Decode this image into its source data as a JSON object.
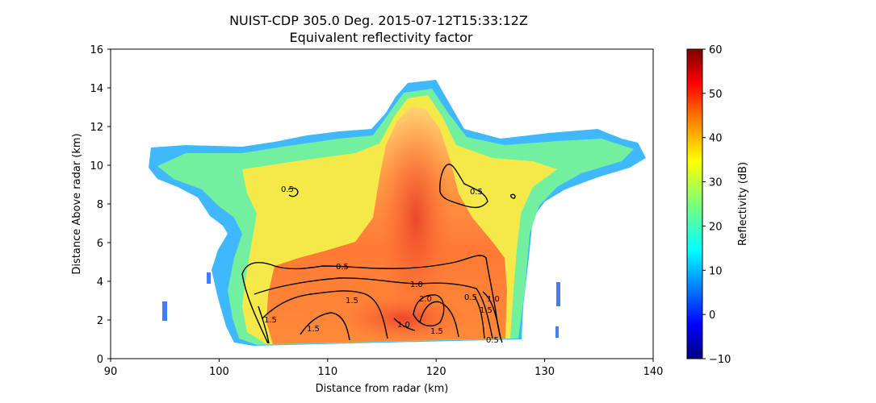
{
  "figure": {
    "title_line1": "NUIST-CDP 305.0 Deg. 2015-07-12T15:33:12Z",
    "title_line2": "Equivalent reflectivity factor"
  },
  "chart_data": {
    "type": "heatmap",
    "xlabel": "Distance from radar (km)",
    "ylabel": "Distance Above radar  (km)",
    "xlim": [
      90,
      140
    ],
    "ylim": [
      0,
      16
    ],
    "x_ticks": [
      "90",
      "100",
      "110",
      "120",
      "130",
      "140"
    ],
    "y_ticks": [
      "0",
      "2",
      "4",
      "6",
      "8",
      "10",
      "12",
      "14",
      "16"
    ],
    "grid": false,
    "colorbar": {
      "label": "Reflectivity (dB)",
      "range": [
        -10,
        60
      ],
      "ticks": [
        "−10",
        "0",
        "10",
        "20",
        "30",
        "40",
        "50",
        "60"
      ],
      "colormap": "jet",
      "colors": [
        "#000080",
        "#0000ff",
        "#0080ff",
        "#00ffff",
        "#80ff80",
        "#ffff00",
        "#ff8000",
        "#ff0000",
        "#800000"
      ]
    },
    "contour_labels": [
      "0.5",
      "0.5",
      "0.5",
      "1.0",
      "1.5",
      "2.0",
      "1.5",
      "1.0",
      "1.5",
      "0.5",
      "1.5",
      "1.0",
      "1.5",
      "0.5"
    ],
    "contour_color": "#000000"
  }
}
